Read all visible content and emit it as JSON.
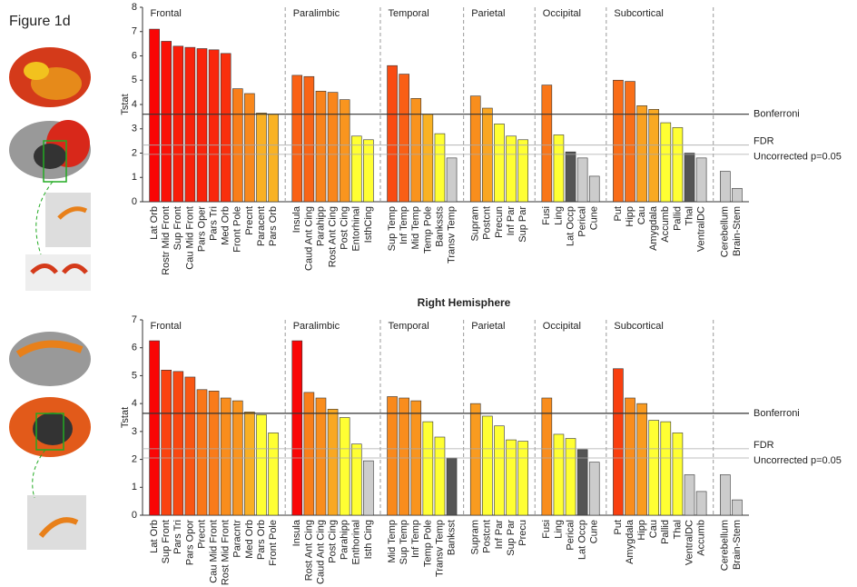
{
  "figure_label": "Figure 1d",
  "chart_data": [
    {
      "type": "bar",
      "y_label": "Tstat",
      "ylim": [
        0,
        8
      ],
      "yticks": [
        0,
        1,
        2,
        3,
        4,
        5,
        6,
        7,
        8
      ],
      "reference_lines": [
        {
          "label": "Bonferroni",
          "value": 3.6
        },
        {
          "label": "FDR",
          "value": 2.33
        },
        {
          "label": "Uncorrected p=0.05",
          "value": 1.95
        }
      ],
      "groups": [
        {
          "name": "Frontal",
          "categories": [
            "Lat Orb",
            "Rostr Mid Front",
            "Sup Front",
            "Cau Mid Front",
            "Pars Oper",
            "Pars Tri",
            "Med Orb",
            "Front Pole",
            "Precnt",
            "Paracent",
            "Pars Orb"
          ],
          "values": [
            7.1,
            6.6,
            6.4,
            6.35,
            6.3,
            6.25,
            6.1,
            4.65,
            4.45,
            3.65,
            3.6
          ]
        },
        {
          "name": "Paralimbic",
          "categories": [
            "Insula",
            "Caud Ant Cing",
            "Parahipp",
            "Rost Ant Cing",
            "Post Cing",
            "Entorhinal",
            "IsthCing"
          ],
          "values": [
            5.2,
            5.15,
            4.55,
            4.5,
            4.2,
            2.7,
            2.55
          ]
        },
        {
          "name": "Temporal",
          "categories": [
            "Sup Temp",
            "Inf Temp",
            "Mid Temp",
            "Temp Pole",
            "Bankssts",
            "Transv Temp"
          ],
          "values": [
            5.6,
            5.25,
            4.25,
            3.6,
            2.8,
            1.8
          ]
        },
        {
          "name": "Parietal",
          "categories": [
            "Supram",
            "Postcnt",
            "Precun",
            "Inf Par",
            "Sup Par"
          ],
          "values": [
            4.35,
            3.85,
            3.2,
            2.7,
            2.55
          ]
        },
        {
          "name": "Occipital",
          "categories": [
            "Fusi",
            "Ling",
            "Lat Occp",
            "Perical",
            "Cune"
          ],
          "values": [
            4.8,
            2.75,
            2.05,
            1.8,
            1.05
          ]
        },
        {
          "name": "Subcortical",
          "categories": [
            "Put",
            "Hipp",
            "Cau",
            "Amygdala",
            "Accumb",
            "Pallid",
            "Thal",
            "VentralDC"
          ],
          "values": [
            5.0,
            4.95,
            3.95,
            3.8,
            3.25,
            3.05,
            2.0,
            1.8
          ]
        },
        {
          "categories": [
            "Cerebellum",
            "Brain-Stem"
          ],
          "values": [
            1.25,
            0.55
          ]
        }
      ]
    },
    {
      "type": "bar",
      "title": "Right Hemisphere",
      "y_label": "Tstat",
      "ylim": [
        0,
        7
      ],
      "yticks": [
        0,
        1,
        2,
        3,
        4,
        5,
        6,
        7
      ],
      "reference_lines": [
        {
          "label": "Bonferroni",
          "value": 3.65
        },
        {
          "label": "FDR",
          "value": 2.38
        },
        {
          "label": "Uncorrected p=0.05",
          "value": 2.05
        }
      ],
      "groups": [
        {
          "name": "Frontal",
          "categories": [
            "Lat Orb",
            "Sup Front",
            "Pars Tri",
            "Pars Opor",
            "Precnt",
            "Cau Mid Front",
            "Rost Mid Front",
            "Paracntr",
            "Med Orb",
            "Pars Orb",
            "Front Pole"
          ],
          "values": [
            6.25,
            5.2,
            5.15,
            4.95,
            4.5,
            4.45,
            4.2,
            4.1,
            3.7,
            3.6,
            2.95
          ]
        },
        {
          "name": "Paralimbic",
          "categories": [
            "Insula",
            "Rost Ant Cing",
            "Caud Ant Cing",
            "Post Cing",
            "Parahipp",
            "Enthorinal",
            "Isth Cing"
          ],
          "values": [
            6.25,
            4.4,
            4.2,
            3.8,
            3.5,
            2.55,
            1.95
          ]
        },
        {
          "name": "Temporal",
          "categories": [
            "Mid Temp",
            "Sup Temp",
            "Inf Temp",
            "Temp Pole",
            "Transv Temp",
            "Banksst"
          ],
          "values": [
            4.25,
            4.2,
            4.1,
            3.35,
            2.8,
            2.05
          ]
        },
        {
          "name": "Parietal",
          "categories": [
            "Supram",
            "Postcnt",
            "Inf Par",
            "Sup Par",
            "Precu"
          ],
          "values": [
            4.0,
            3.55,
            3.2,
            2.7,
            2.65
          ]
        },
        {
          "name": "Occipital",
          "categories": [
            "Fusi",
            "Ling",
            "Perical",
            "Lat Occp",
            "Cune"
          ],
          "values": [
            4.2,
            2.9,
            2.75,
            2.35,
            1.9
          ]
        },
        {
          "name": "Subcortical",
          "categories": [
            "Put",
            "Amygdala",
            "Hipp",
            "Cau",
            "Pallid",
            "Thal",
            "VentralDC",
            "Accumb"
          ],
          "values": [
            5.25,
            4.2,
            4.0,
            3.4,
            3.35,
            2.95,
            1.45,
            0.85
          ]
        },
        {
          "categories": [
            "Cerebellum",
            "Brain-Stem"
          ],
          "values": [
            1.45,
            0.55
          ]
        }
      ]
    }
  ]
}
